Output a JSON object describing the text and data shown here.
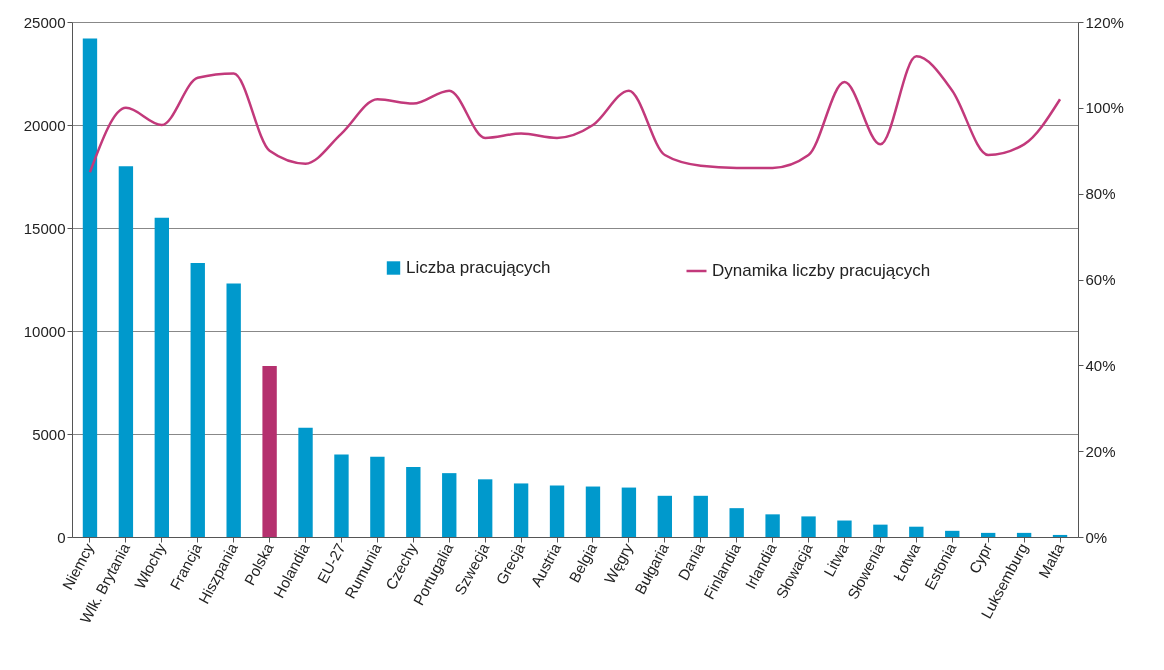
{
  "chart_data": {
    "type": "bar",
    "categories": [
      "Niemcy",
      "Wlk. Brytania",
      "Włochy",
      "Francja",
      "Hiszpania",
      "Polska",
      "Holandia",
      "EU-27",
      "Rumunia",
      "Czechy",
      "Portugalia",
      "Szwecja",
      "Grecja",
      "Austria",
      "Belgia",
      "Węgry",
      "Bułgaria",
      "Dania",
      "Finlandia",
      "Irlandia",
      "Słowacja",
      "Litwa",
      "Słowenia",
      "Łotwa",
      "Estonia",
      "Cypr",
      "Luksemburg",
      "Malta"
    ],
    "series": [
      {
        "name": "Liczba pracujących",
        "color": "#0099cc",
        "colors": [
          "#0099cc",
          "#0099cc",
          "#0099cc",
          "#0099cc",
          "#0099cc",
          "#b5306e",
          "#0099cc",
          "#0099cc",
          "#0099cc",
          "#0099cc",
          "#0099cc",
          "#0099cc",
          "#0099cc",
          "#0099cc",
          "#0099cc",
          "#0099cc",
          "#0099cc",
          "#0099cc",
          "#0099cc",
          "#0099cc",
          "#0099cc",
          "#0099cc",
          "#0099cc",
          "#0099cc",
          "#0099cc",
          "#0099cc",
          "#0099cc",
          "#0099cc"
        ],
        "values": [
          24200,
          18000,
          15500,
          13300,
          12300,
          8300,
          5300,
          4000,
          3900,
          3400,
          3100,
          2800,
          2600,
          2500,
          2450,
          2400,
          2000,
          2000,
          1400,
          1100,
          1000,
          800,
          600,
          500,
          300,
          200,
          200,
          100
        ]
      },
      {
        "name": "Dynamika liczby pracujących",
        "type": "line",
        "axis": "y2",
        "color": "#c2397b",
        "values": [
          85,
          100,
          96,
          107,
          108,
          90,
          87,
          94,
          102,
          101,
          104,
          93,
          94,
          93,
          96,
          104,
          89,
          86.5,
          86,
          86,
          89,
          106,
          91.5,
          112,
          104,
          89,
          91.5,
          102
        ]
      }
    ],
    "ylim": [
      0,
      25000
    ],
    "yticks": [
      0,
      5000,
      10000,
      15000,
      20000,
      25000
    ],
    "y2lim": [
      0,
      120
    ],
    "y2ticks": [
      {
        "value": 0,
        "label": "0%"
      },
      {
        "value": 20,
        "label": "20%"
      },
      {
        "value": 40,
        "label": "40%"
      },
      {
        "value": 60,
        "label": "60%"
      },
      {
        "value": 80,
        "label": "80%"
      },
      {
        "value": 100,
        "label": "100%"
      },
      {
        "value": 120,
        "label": "120%"
      }
    ],
    "grid": "y",
    "legend": "center"
  }
}
